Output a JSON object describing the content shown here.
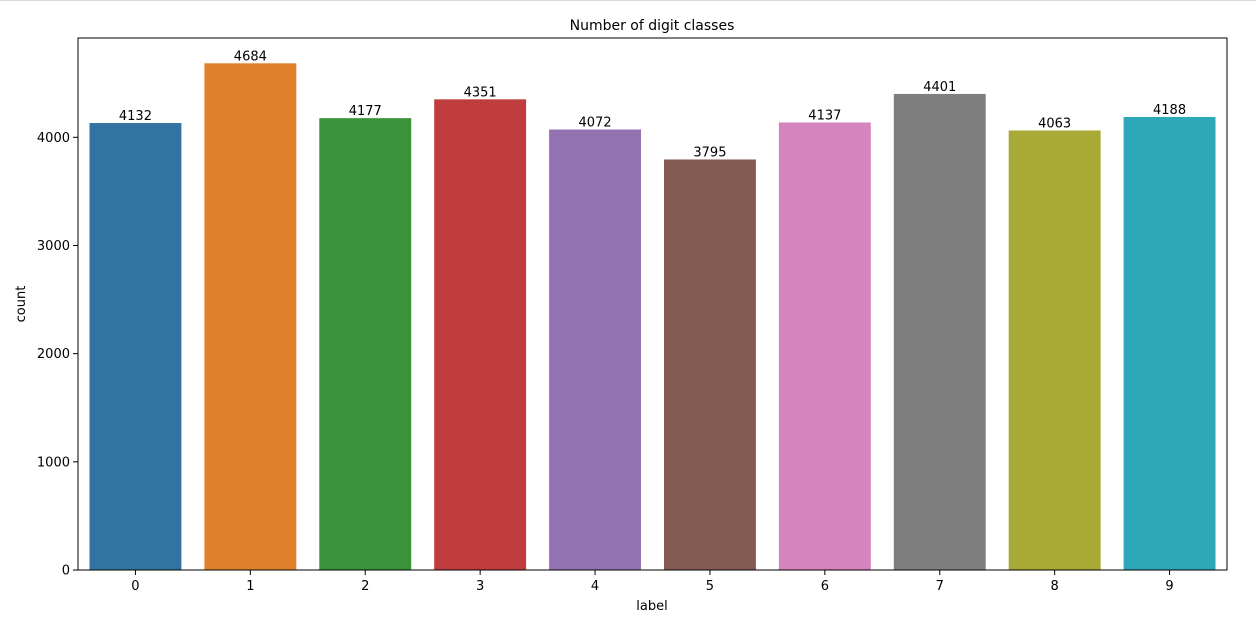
{
  "chart_data": {
    "type": "bar",
    "title": "Number of digit classes",
    "xlabel": "label",
    "ylabel": "count",
    "categories": [
      "0",
      "1",
      "2",
      "3",
      "4",
      "5",
      "6",
      "7",
      "8",
      "9"
    ],
    "values": [
      4132,
      4684,
      4177,
      4351,
      4072,
      3795,
      4137,
      4401,
      4063,
      4188
    ],
    "bar_labels": [
      "4132",
      "4684",
      "4177",
      "4351",
      "4072",
      "3795",
      "4137",
      "4401",
      "4063",
      "4188"
    ],
    "colors": [
      "#3274a1",
      "#e1812c",
      "#3a923a",
      "#c03d3e",
      "#9372b2",
      "#845b53",
      "#d684bd",
      "#7f7f7f",
      "#a9aa35",
      "#2ea8b9"
    ],
    "yticks": [
      0,
      1000,
      2000,
      3000,
      4000
    ],
    "ytick_labels": [
      "0",
      "1000",
      "2000",
      "3000",
      "4000"
    ],
    "ylim": [
      0,
      4918
    ],
    "grid": false,
    "legend": "none"
  }
}
